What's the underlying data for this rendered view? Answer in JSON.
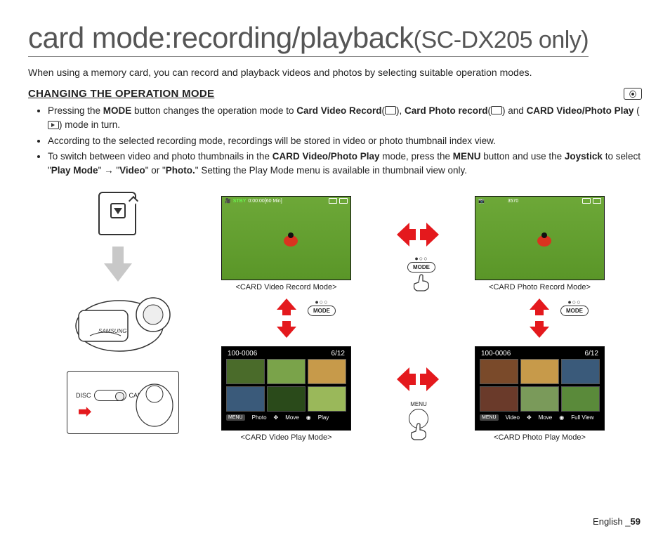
{
  "title_main": "card mode:recording/playback",
  "title_sub": "(SC-DX205 only)",
  "intro": "When using a memory card, you can record and playback videos and photos by selecting suitable operation modes.",
  "section_heading": "CHANGING THE OPERATION MODE",
  "bullets": {
    "b1_a": "Pressing the ",
    "b1_b": "MODE",
    "b1_c": " button changes the operation mode to ",
    "b1_d": "Card Video Record",
    "b1_e": "(",
    "b1_f": "), ",
    "b1_g": "Card Photo record",
    "b1_h": "(",
    "b1_i": ") and ",
    "b1_j": "CARD Video/Photo Play",
    "b1_k": " (",
    "b1_l": ") mode in turn.",
    "b2": "According to the selected recording mode, recordings will be stored in video or photo thumbnail index view.",
    "b3_a": "To switch between video and photo thumbnails in the ",
    "b3_b": "CARD Video/Photo Play",
    "b3_c": " mode, press the ",
    "b3_d": "MENU",
    "b3_e": " button and use the ",
    "b3_f": "Joystick",
    "b3_g": " to select \"",
    "b3_h": "Play Mode",
    "b3_i": "\" → \"",
    "b3_j": "Video",
    "b3_k": "\" or \"",
    "b3_l": "Photo.",
    "b3_m": "\" Setting the Play Mode menu is available in thumbnail view only."
  },
  "switch": {
    "disc": "DISC",
    "card": "CARD"
  },
  "lcd1": {
    "stby": "STBY",
    "time": "0:00:00[60 Min]",
    "caption": "<CARD Video Record Mode>"
  },
  "lcd2": {
    "count": "3570",
    "caption": "<CARD Photo Record Mode>"
  },
  "thumbs": {
    "folder": "100-0006",
    "counter": "6/12",
    "menu": "MENU",
    "photo": "Photo",
    "video": "Video",
    "move": "Move",
    "play": "Play",
    "full": "Full View",
    "caption_video": "<CARD Video Play Mode>",
    "caption_photo": "<CARD Photo Play Mode>"
  },
  "mode_label": "MODE",
  "menu_label": "MENU",
  "footer_lang": "English _",
  "footer_page": "59",
  "colors": {
    "red": "#e4191d",
    "green1": "#6da838",
    "arrow_gray": "#bfbfbf"
  },
  "thumb_colors": {
    "video": [
      "#4a6b2a",
      "#7aa34a",
      "#c79a4a",
      "#3a5a7a",
      "#2a4a1a",
      "#9ab85a"
    ],
    "photo": [
      "#7a4a2a",
      "#c79a4a",
      "#3a5a7a",
      "#6a3a2a",
      "#7a9a5a",
      "#5a8a3a"
    ]
  }
}
